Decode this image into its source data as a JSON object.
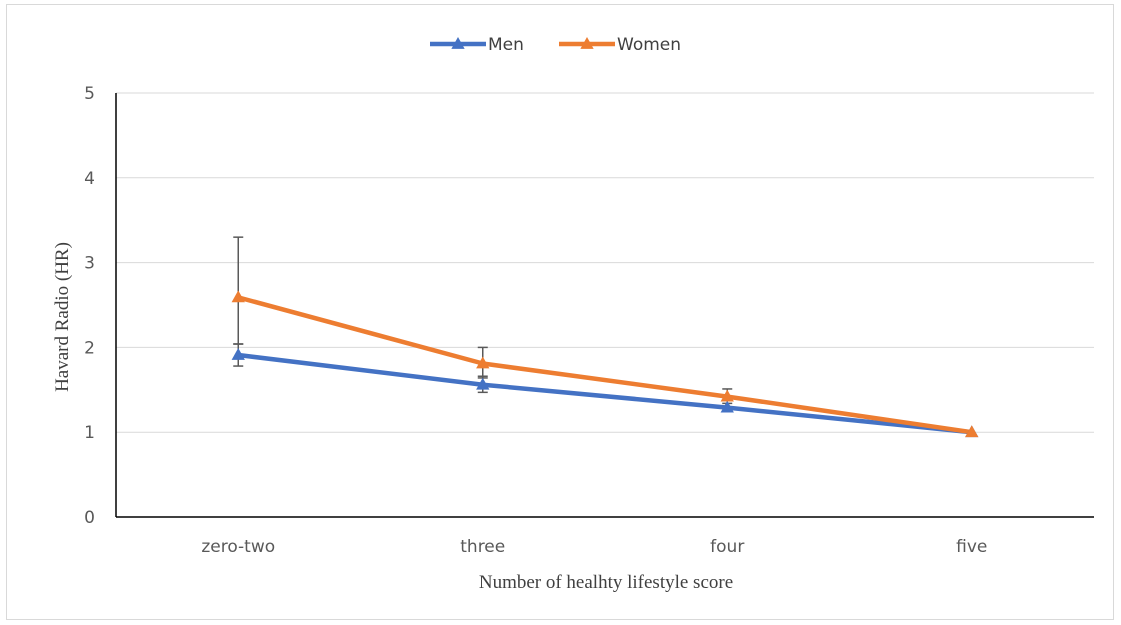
{
  "chart_data": {
    "type": "line",
    "title": "",
    "xlabel": "Number of  healhty lifestyle score",
    "ylabel": "Havard Radio (HR)",
    "categories": [
      "zero-two",
      "three",
      "four",
      "five"
    ],
    "ylim": [
      0,
      5
    ],
    "yticks": [
      0,
      1,
      2,
      3,
      4,
      5
    ],
    "grid": true,
    "legend_position": "top-center",
    "series": [
      {
        "name": "Men",
        "color": "#4472c4",
        "marker": "triangle",
        "values": [
          1.91,
          1.56,
          1.29,
          1.0
        ],
        "error_low": [
          1.78,
          1.47,
          null,
          null
        ],
        "error_high": [
          2.04,
          1.66,
          null,
          null
        ]
      },
      {
        "name": "Women",
        "color": "#ed7d31",
        "marker": "triangle",
        "values": [
          2.59,
          1.81,
          1.42,
          1.0
        ],
        "error_low": [
          2.04,
          1.64,
          1.34,
          null
        ],
        "error_high": [
          3.3,
          2.0,
          1.51,
          null
        ]
      }
    ],
    "error_bar_color": "#595959"
  }
}
